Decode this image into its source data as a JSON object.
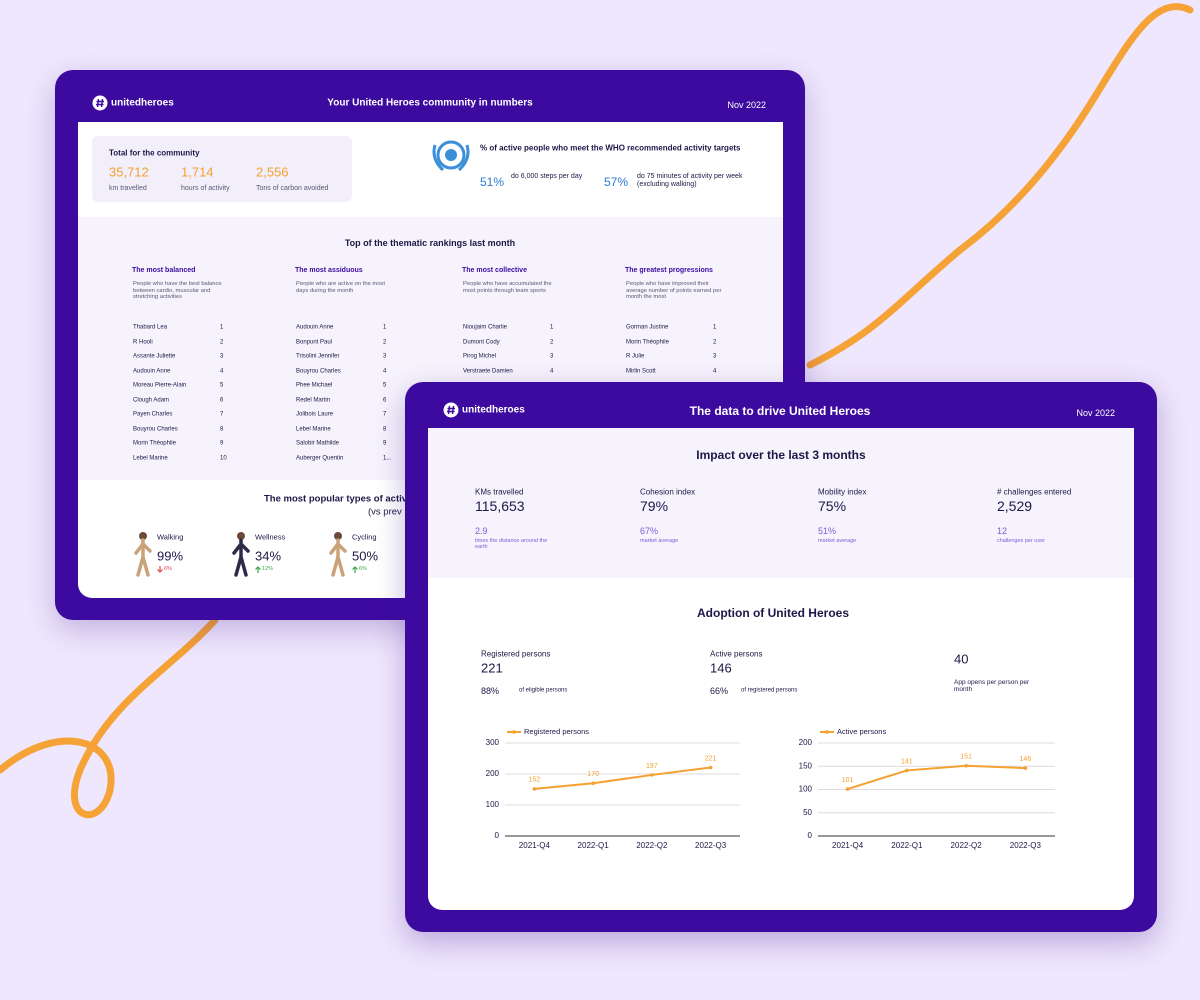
{
  "back_card": {
    "brand": "unitedheroes",
    "title": "Your United Heroes community in numbers",
    "date": "Nov 2022",
    "totals": {
      "title": "Total for the community",
      "items": [
        {
          "value": "35,712",
          "label": "km travelled"
        },
        {
          "value": "1,714",
          "label": "hours of activity"
        },
        {
          "value": "2,556",
          "label": "Tons of carbon avoided"
        }
      ]
    },
    "who": {
      "title": "% of active people who meet the WHO recommended activity targets",
      "items": [
        {
          "value": "51%",
          "label": "do 6,000 steps per day"
        },
        {
          "value": "57%",
          "label": "do 75 minutes of activity per week (excluding walking)"
        }
      ]
    },
    "rankings": {
      "title": "Top of the thematic rankings last month",
      "columns": [
        {
          "title": "The most balanced",
          "description": "People who have the best balance between cardio, muscular and stretching activities",
          "rows": [
            [
              "Thabard Lea",
              "1"
            ],
            [
              "R Hooli",
              "2"
            ],
            [
              "Assante Juliette",
              "3"
            ],
            [
              "Audouin Anne",
              "4"
            ],
            [
              "Moreau Pierre-Alain",
              "5"
            ],
            [
              "Clough Adam",
              "6"
            ],
            [
              "Payen Charles",
              "7"
            ],
            [
              "Bouyrou Charles",
              "8"
            ],
            [
              "Morin Théophile",
              "9"
            ],
            [
              "Lebel Marine",
              "10"
            ]
          ]
        },
        {
          "title": "The most assiduous",
          "description": "People who are active on the most days during the month",
          "rows": [
            [
              "Audouin Anne",
              "1"
            ],
            [
              "Bonpunt Paul",
              "2"
            ],
            [
              "Trisolini Jennifer",
              "3"
            ],
            [
              "Bouyrou Charles",
              "4"
            ],
            [
              "Phee Michael",
              "5"
            ],
            [
              "Redel Martin",
              "6"
            ],
            [
              "Jolibois Laure",
              "7"
            ],
            [
              "Lebel Marine",
              "8"
            ],
            [
              "Salobir Mathilde",
              "9"
            ],
            [
              "Auberger Quentin",
              "1..."
            ]
          ]
        },
        {
          "title": "The most collective",
          "description": "People who have accumulated the most points through team sports",
          "rows": [
            [
              "Nioujaim Charlie",
              "1"
            ],
            [
              "Dumont Cody",
              "2"
            ],
            [
              "Pirog Michel",
              "3"
            ],
            [
              "Verstraete Damien",
              "4"
            ]
          ]
        },
        {
          "title": "The greatest progressions",
          "description": "People who have improved their average number of points earned per month the most",
          "rows": [
            [
              "Gorman Justine",
              "1"
            ],
            [
              "Morin Théophile",
              "2"
            ],
            [
              "R Julie",
              "3"
            ],
            [
              "Mirlin Scott",
              "4"
            ]
          ]
        }
      ]
    },
    "popular": {
      "title": "The most popular types of activ",
      "subtitle": "(vs prev",
      "items": [
        {
          "name": "Walking",
          "value": "99%",
          "change": "6%",
          "trend": "down"
        },
        {
          "name": "Wellness",
          "value": "34%",
          "change": "12%",
          "trend": "up"
        },
        {
          "name": "Cycling",
          "value": "50%",
          "change": "6%",
          "trend": "up"
        }
      ]
    }
  },
  "front_card": {
    "brand": "unitedheroes",
    "title": "The data to drive United Heroes",
    "date": "Nov 2022",
    "impact": {
      "title": "Impact over the last 3 months",
      "metrics": [
        {
          "label": "KMs travelled",
          "value": "115,653",
          "sub_value": "2.9",
          "sub_label": "times the distance around the earth"
        },
        {
          "label": "Cohesion index",
          "value": "79%",
          "sub_value": "67%",
          "sub_label": "market average"
        },
        {
          "label": "Mobility index",
          "value": "75%",
          "sub_value": "51%",
          "sub_label": "market average"
        },
        {
          "label": "# challenges entered",
          "value": "2,529",
          "sub_value": "12",
          "sub_label": "challenges per user"
        }
      ]
    },
    "adoption": {
      "title": "Adoption of United Heroes",
      "metrics": [
        {
          "label": "Registered persons",
          "value": "221",
          "share": "88%",
          "share_label": "of eligible persons"
        },
        {
          "label": "Active persons",
          "value": "146",
          "share": "66%",
          "share_label": "of registered persons"
        }
      ],
      "app_opens": {
        "value": "40",
        "label": "App opens per person per month"
      }
    }
  },
  "chart_data": [
    {
      "type": "line",
      "categories": [
        "2021-Q4",
        "2022-Q1",
        "2022-Q2",
        "2022-Q3"
      ],
      "series": [
        {
          "name": "Registered persons",
          "color": "#f5a030",
          "values": [
            152,
            170,
            197,
            221
          ]
        }
      ],
      "ylim": [
        0,
        300
      ],
      "yticks": [
        0,
        100,
        200,
        300
      ],
      "grid": true,
      "legend": "top-left"
    },
    {
      "type": "line",
      "categories": [
        "2021-Q4",
        "2022-Q1",
        "2022-Q2",
        "2022-Q3"
      ],
      "series": [
        {
          "name": "Active persons",
          "color": "#f5a030",
          "values": [
            101,
            141,
            151,
            146
          ]
        }
      ],
      "ylim": [
        0,
        200
      ],
      "yticks": [
        0,
        50,
        100,
        150,
        200
      ],
      "grid": true,
      "legend": "top-left"
    }
  ]
}
